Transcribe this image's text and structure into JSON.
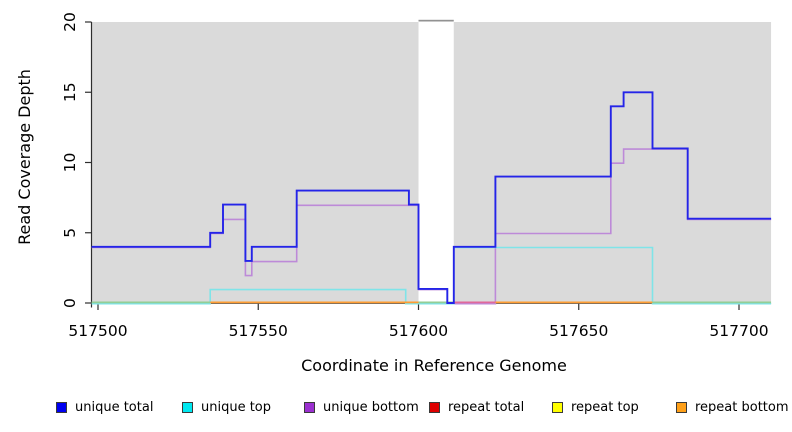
{
  "figure": {
    "title": "",
    "xlabel": "Coordinate in Reference Genome",
    "ylabel": "Read Coverage Depth",
    "panel_bg": "#DADADA",
    "axis_color": "#2E2E2E",
    "x_ticks": [
      517500,
      517550,
      517600,
      517650,
      517700
    ],
    "y_ticks": [
      0,
      5,
      10,
      15,
      20
    ],
    "xlim": [
      517498,
      517710
    ],
    "ylim": [
      0,
      20
    ],
    "mask_region": {
      "start": 517600,
      "end": 517611,
      "fill": "#FFFFFF",
      "cap_color": "#929292"
    }
  },
  "chart_data": {
    "type": "line",
    "style": "step",
    "title": "",
    "xlabel": "Coordinate in Reference Genome",
    "ylabel": "Read Coverage Depth",
    "xlim": [
      517498,
      517710
    ],
    "ylim": [
      0,
      20
    ],
    "grid": false,
    "legend_position": "bottom",
    "masked_region": {
      "start": 517600,
      "end": 517611
    },
    "series": [
      {
        "name": "repeat total",
        "color": "#DD0000",
        "steps": [
          [
            517498,
            0
          ]
        ]
      },
      {
        "name": "repeat top",
        "color": "#FFFF00",
        "steps": [
          [
            517498,
            0
          ]
        ]
      },
      {
        "name": "repeat bottom",
        "color": "#FF9D33",
        "steps": [
          [
            517498,
            0
          ]
        ]
      },
      {
        "name": "unique bottom",
        "color": "#BD8AD8",
        "steps": [
          [
            517498,
            4
          ],
          [
            517535,
            5
          ],
          [
            517539,
            6
          ],
          [
            517546,
            2
          ],
          [
            517548,
            3
          ],
          [
            517562,
            7
          ],
          [
            517600,
            1
          ],
          [
            517609,
            0
          ],
          [
            517624,
            5
          ],
          [
            517660,
            10
          ],
          [
            517664,
            11
          ],
          [
            517684,
            6
          ]
        ]
      },
      {
        "name": "unique top",
        "color": "#7FE4E8",
        "steps": [
          [
            517498,
            0
          ],
          [
            517535,
            1
          ],
          [
            517596,
            0
          ],
          [
            517611,
            4
          ],
          [
            517673,
            0
          ]
        ]
      },
      {
        "name": "unique total",
        "color": "#2424E8",
        "steps": [
          [
            517498,
            4
          ],
          [
            517535,
            5
          ],
          [
            517539,
            7
          ],
          [
            517546,
            3
          ],
          [
            517548,
            4
          ],
          [
            517562,
            8
          ],
          [
            517597,
            7
          ],
          [
            517600,
            1
          ],
          [
            517609,
            0
          ],
          [
            517611,
            4
          ],
          [
            517624,
            9
          ],
          [
            517660,
            14
          ],
          [
            517664,
            15
          ],
          [
            517673,
            11
          ],
          [
            517684,
            6
          ]
        ]
      }
    ],
    "baseline_blend_segments": [
      {
        "from": 517498,
        "to": 517535,
        "color": "#93CE96"
      },
      {
        "from": 517535,
        "to": 517600,
        "color": "#FF9D33"
      },
      {
        "from": 517600,
        "to": 517611,
        "color": "#93CE96"
      },
      {
        "from": 517611,
        "to": 517624,
        "color": "#E0689C"
      },
      {
        "from": 517624,
        "to": 517673,
        "color": "#FF9D33"
      },
      {
        "from": 517673,
        "to": 517710,
        "color": "#93CE96"
      }
    ]
  },
  "legend": {
    "items": [
      {
        "label": "unique total",
        "color": "#0000F0"
      },
      {
        "label": "unique top",
        "color": "#00E8F0"
      },
      {
        "label": "unique bottom",
        "color": "#9B30D0"
      },
      {
        "label": "repeat total",
        "color": "#DD0000"
      },
      {
        "label": "repeat top",
        "color": "#FFFF00"
      },
      {
        "label": "repeat bottom",
        "color": "#FFA019"
      }
    ]
  }
}
